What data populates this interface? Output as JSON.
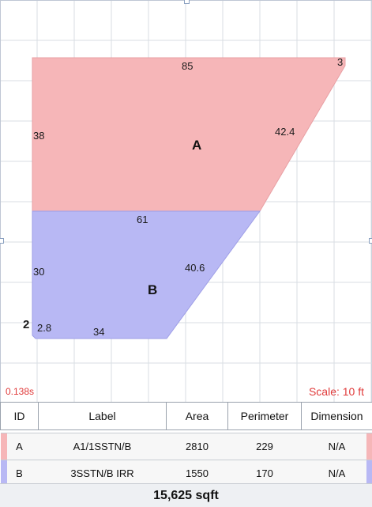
{
  "sketch": {
    "timer": "0.138s",
    "scale": "Scale: 10 ft",
    "grid_color": "#d9dde3",
    "area_a": {
      "id": "A",
      "fill": "#f6b6b8",
      "dimensions": {
        "top": "85",
        "corner": "3",
        "left": "38",
        "diagonal": "42.4"
      }
    },
    "area_b": {
      "id": "B",
      "fill": "#b8b8f4",
      "dimensions": {
        "top": "61",
        "left": "30",
        "diagonal": "40.6",
        "corner_left": "2",
        "bottom_left": "2.8",
        "bottom": "34"
      }
    }
  },
  "table": {
    "headers": [
      "ID",
      "Label",
      "Area",
      "Perimeter",
      "Dimension"
    ],
    "rows": [
      {
        "id": "A",
        "label": "A1/1SSTN/B",
        "area": "2810",
        "perimeter": "229",
        "dimension": "N/A",
        "color": "#f6b6b8"
      },
      {
        "id": "B",
        "label": "3SSTN/B IRR",
        "area": "1550",
        "perimeter": "170",
        "dimension": "N/A",
        "color": "#b8b8f4"
      }
    ]
  },
  "footer": {
    "total": "15,625 sqft"
  }
}
